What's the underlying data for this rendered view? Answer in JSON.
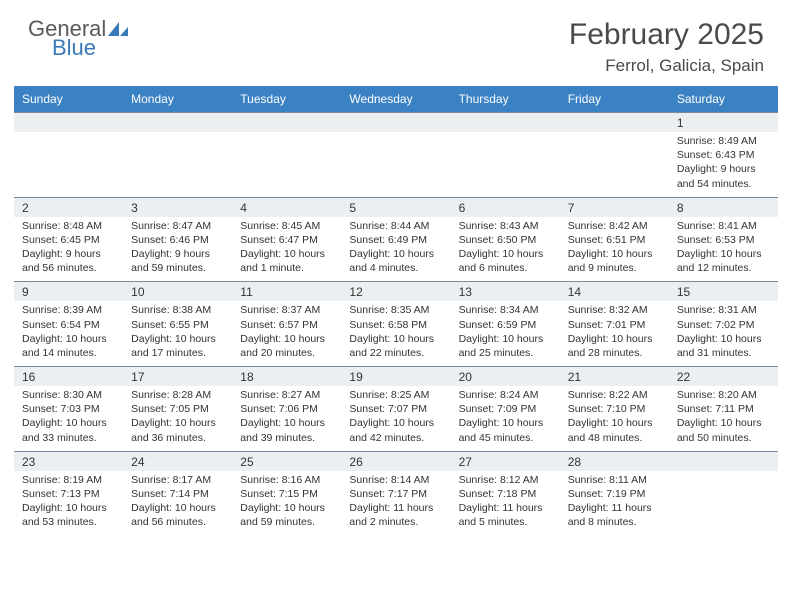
{
  "logo": {
    "word1": "General",
    "word2": "Blue"
  },
  "title": "February 2025",
  "location": "Ferrol, Galicia, Spain",
  "colors": {
    "header_bg": "#3b82c4",
    "header_text": "#ffffff",
    "numstrip_bg": "#eceff1",
    "numstrip_border": "#7a8a9a",
    "text": "#333333",
    "logo_gray": "#5a5a5a",
    "logo_blue": "#3b7ab8"
  },
  "weekdays": [
    "Sunday",
    "Monday",
    "Tuesday",
    "Wednesday",
    "Thursday",
    "Friday",
    "Saturday"
  ],
  "weeks": [
    [
      {
        "n": "",
        "sr": "",
        "ss": "",
        "dl": ""
      },
      {
        "n": "",
        "sr": "",
        "ss": "",
        "dl": ""
      },
      {
        "n": "",
        "sr": "",
        "ss": "",
        "dl": ""
      },
      {
        "n": "",
        "sr": "",
        "ss": "",
        "dl": ""
      },
      {
        "n": "",
        "sr": "",
        "ss": "",
        "dl": ""
      },
      {
        "n": "",
        "sr": "",
        "ss": "",
        "dl": ""
      },
      {
        "n": "1",
        "sr": "Sunrise: 8:49 AM",
        "ss": "Sunset: 6:43 PM",
        "dl": "Daylight: 9 hours and 54 minutes."
      }
    ],
    [
      {
        "n": "2",
        "sr": "Sunrise: 8:48 AM",
        "ss": "Sunset: 6:45 PM",
        "dl": "Daylight: 9 hours and 56 minutes."
      },
      {
        "n": "3",
        "sr": "Sunrise: 8:47 AM",
        "ss": "Sunset: 6:46 PM",
        "dl": "Daylight: 9 hours and 59 minutes."
      },
      {
        "n": "4",
        "sr": "Sunrise: 8:45 AM",
        "ss": "Sunset: 6:47 PM",
        "dl": "Daylight: 10 hours and 1 minute."
      },
      {
        "n": "5",
        "sr": "Sunrise: 8:44 AM",
        "ss": "Sunset: 6:49 PM",
        "dl": "Daylight: 10 hours and 4 minutes."
      },
      {
        "n": "6",
        "sr": "Sunrise: 8:43 AM",
        "ss": "Sunset: 6:50 PM",
        "dl": "Daylight: 10 hours and 6 minutes."
      },
      {
        "n": "7",
        "sr": "Sunrise: 8:42 AM",
        "ss": "Sunset: 6:51 PM",
        "dl": "Daylight: 10 hours and 9 minutes."
      },
      {
        "n": "8",
        "sr": "Sunrise: 8:41 AM",
        "ss": "Sunset: 6:53 PM",
        "dl": "Daylight: 10 hours and 12 minutes."
      }
    ],
    [
      {
        "n": "9",
        "sr": "Sunrise: 8:39 AM",
        "ss": "Sunset: 6:54 PM",
        "dl": "Daylight: 10 hours and 14 minutes."
      },
      {
        "n": "10",
        "sr": "Sunrise: 8:38 AM",
        "ss": "Sunset: 6:55 PM",
        "dl": "Daylight: 10 hours and 17 minutes."
      },
      {
        "n": "11",
        "sr": "Sunrise: 8:37 AM",
        "ss": "Sunset: 6:57 PM",
        "dl": "Daylight: 10 hours and 20 minutes."
      },
      {
        "n": "12",
        "sr": "Sunrise: 8:35 AM",
        "ss": "Sunset: 6:58 PM",
        "dl": "Daylight: 10 hours and 22 minutes."
      },
      {
        "n": "13",
        "sr": "Sunrise: 8:34 AM",
        "ss": "Sunset: 6:59 PM",
        "dl": "Daylight: 10 hours and 25 minutes."
      },
      {
        "n": "14",
        "sr": "Sunrise: 8:32 AM",
        "ss": "Sunset: 7:01 PM",
        "dl": "Daylight: 10 hours and 28 minutes."
      },
      {
        "n": "15",
        "sr": "Sunrise: 8:31 AM",
        "ss": "Sunset: 7:02 PM",
        "dl": "Daylight: 10 hours and 31 minutes."
      }
    ],
    [
      {
        "n": "16",
        "sr": "Sunrise: 8:30 AM",
        "ss": "Sunset: 7:03 PM",
        "dl": "Daylight: 10 hours and 33 minutes."
      },
      {
        "n": "17",
        "sr": "Sunrise: 8:28 AM",
        "ss": "Sunset: 7:05 PM",
        "dl": "Daylight: 10 hours and 36 minutes."
      },
      {
        "n": "18",
        "sr": "Sunrise: 8:27 AM",
        "ss": "Sunset: 7:06 PM",
        "dl": "Daylight: 10 hours and 39 minutes."
      },
      {
        "n": "19",
        "sr": "Sunrise: 8:25 AM",
        "ss": "Sunset: 7:07 PM",
        "dl": "Daylight: 10 hours and 42 minutes."
      },
      {
        "n": "20",
        "sr": "Sunrise: 8:24 AM",
        "ss": "Sunset: 7:09 PM",
        "dl": "Daylight: 10 hours and 45 minutes."
      },
      {
        "n": "21",
        "sr": "Sunrise: 8:22 AM",
        "ss": "Sunset: 7:10 PM",
        "dl": "Daylight: 10 hours and 48 minutes."
      },
      {
        "n": "22",
        "sr": "Sunrise: 8:20 AM",
        "ss": "Sunset: 7:11 PM",
        "dl": "Daylight: 10 hours and 50 minutes."
      }
    ],
    [
      {
        "n": "23",
        "sr": "Sunrise: 8:19 AM",
        "ss": "Sunset: 7:13 PM",
        "dl": "Daylight: 10 hours and 53 minutes."
      },
      {
        "n": "24",
        "sr": "Sunrise: 8:17 AM",
        "ss": "Sunset: 7:14 PM",
        "dl": "Daylight: 10 hours and 56 minutes."
      },
      {
        "n": "25",
        "sr": "Sunrise: 8:16 AM",
        "ss": "Sunset: 7:15 PM",
        "dl": "Daylight: 10 hours and 59 minutes."
      },
      {
        "n": "26",
        "sr": "Sunrise: 8:14 AM",
        "ss": "Sunset: 7:17 PM",
        "dl": "Daylight: 11 hours and 2 minutes."
      },
      {
        "n": "27",
        "sr": "Sunrise: 8:12 AM",
        "ss": "Sunset: 7:18 PM",
        "dl": "Daylight: 11 hours and 5 minutes."
      },
      {
        "n": "28",
        "sr": "Sunrise: 8:11 AM",
        "ss": "Sunset: 7:19 PM",
        "dl": "Daylight: 11 hours and 8 minutes."
      },
      {
        "n": "",
        "sr": "",
        "ss": "",
        "dl": ""
      }
    ]
  ]
}
